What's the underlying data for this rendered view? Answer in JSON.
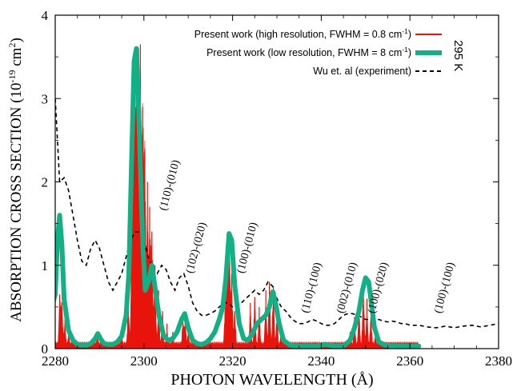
{
  "chart_data": {
    "type": "line",
    "xlabel": "PHOTON WAVELENGTH (Å)",
    "ylabel": "ABSORPTION CROSS SECTION (10",
    "ylabel_sup1": "-19",
    "ylabel_mid": " cm",
    "ylabel_sup2": "2",
    "ylabel_end": ")",
    "xlim": [
      2280,
      2380
    ],
    "ylim": [
      0,
      4
    ],
    "x_ticks": [
      2280,
      2300,
      2320,
      2340,
      2360,
      2380
    ],
    "y_ticks": [
      0,
      1,
      2,
      3,
      4
    ],
    "temperature_label": "295 K",
    "legend_position": "top-right",
    "colors": {
      "high": "#e8150c",
      "low": "#12b085",
      "exp": "#000000"
    },
    "legend": [
      {
        "text": "Present work (high resolution, FWHM = 0.8 cm",
        "sup": "-1",
        "end": ")",
        "style": "red"
      },
      {
        "text": "Present work (low resolution, FWHM = 8 cm",
        "sup": "-1",
        "end": ")",
        "style": "green"
      },
      {
        "text": "Wu et. al (experiment)",
        "sup": "",
        "end": "",
        "style": "dashed"
      }
    ],
    "annotations": [
      {
        "text": "(110)-(010)",
        "x": 2306.5,
        "y": 1.95
      },
      {
        "text": "(102)-(020)",
        "x": 2312.5,
        "y": 1.2
      },
      {
        "text": "(100)-(010)",
        "x": 2324,
        "y": 1.2
      },
      {
        "text": "(110)-(100)",
        "x": 2338.5,
        "y": 0.72
      },
      {
        "text": "(002)-(010)",
        "x": 2346.5,
        "y": 0.72
      },
      {
        "text": "(100)-(020)",
        "x": 2353.5,
        "y": 0.72
      },
      {
        "text": "(100)-(100)",
        "x": 2368.5,
        "y": 0.72
      }
    ],
    "series": [
      {
        "name": "Present work (high resolution, FWHM = 0.8 cm-1)",
        "style": "red",
        "peaks": [
          {
            "x": 2281,
            "h": 0.65
          },
          {
            "x": 2281.5,
            "h": 0.55
          },
          {
            "x": 2282.2,
            "h": 0.35
          },
          {
            "x": 2283,
            "h": 0.2
          },
          {
            "x": 2284,
            "h": 0.12
          },
          {
            "x": 2289.5,
            "h": 0.15
          },
          {
            "x": 2295,
            "h": 0.2
          },
          {
            "x": 2296.5,
            "h": 0.6
          },
          {
            "x": 2297.3,
            "h": 1.9
          },
          {
            "x": 2297.8,
            "h": 3.5
          },
          {
            "x": 2298.3,
            "h": 3.0
          },
          {
            "x": 2298.8,
            "h": 3.6
          },
          {
            "x": 2299.2,
            "h": 3.65
          },
          {
            "x": 2299.7,
            "h": 2.9
          },
          {
            "x": 2300.2,
            "h": 2.4
          },
          {
            "x": 2300.8,
            "h": 2.0
          },
          {
            "x": 2301.3,
            "h": 1.7
          },
          {
            "x": 2301.8,
            "h": 1.4
          },
          {
            "x": 2302.5,
            "h": 1.0
          },
          {
            "x": 2303.3,
            "h": 0.7
          },
          {
            "x": 2304.2,
            "h": 0.45
          },
          {
            "x": 2305.2,
            "h": 0.3
          },
          {
            "x": 2306.5,
            "h": 0.2
          },
          {
            "x": 2308.8,
            "h": 0.35
          },
          {
            "x": 2309.3,
            "h": 0.42
          },
          {
            "x": 2310,
            "h": 0.2
          },
          {
            "x": 2318.3,
            "h": 0.45
          },
          {
            "x": 2318.8,
            "h": 1.25
          },
          {
            "x": 2319.3,
            "h": 1.4
          },
          {
            "x": 2319.8,
            "h": 0.9
          },
          {
            "x": 2320.5,
            "h": 0.45
          },
          {
            "x": 2324,
            "h": 0.55
          },
          {
            "x": 2325,
            "h": 0.62
          },
          {
            "x": 2326,
            "h": 0.5
          },
          {
            "x": 2327.5,
            "h": 0.7
          },
          {
            "x": 2328.3,
            "h": 0.8
          },
          {
            "x": 2329.2,
            "h": 0.75
          },
          {
            "x": 2330,
            "h": 0.5
          },
          {
            "x": 2331,
            "h": 0.3
          },
          {
            "x": 2346.5,
            "h": 0.2
          },
          {
            "x": 2347.5,
            "h": 0.38
          },
          {
            "x": 2348.5,
            "h": 0.55
          },
          {
            "x": 2349.5,
            "h": 0.7
          },
          {
            "x": 2350.3,
            "h": 0.6
          },
          {
            "x": 2351.2,
            "h": 0.38
          },
          {
            "x": 2352.2,
            "h": 0.2
          }
        ]
      },
      {
        "name": "Present work (low resolution, FWHM = 8 cm-1)",
        "style": "green",
        "x": [
          2279.5,
          2280,
          2280.5,
          2281,
          2281.5,
          2282,
          2283,
          2284,
          2285,
          2286,
          2287,
          2288,
          2289,
          2289.6,
          2290.2,
          2291,
          2292,
          2293,
          2294,
          2295,
          2296,
          2296.6,
          2297.2,
          2297.8,
          2298.3,
          2298.8,
          2299.3,
          2299.8,
          2300.3,
          2301,
          2301.8,
          2302.6,
          2303.4,
          2304.5,
          2305.5,
          2306.5,
          2307.5,
          2308.5,
          2309.2,
          2310,
          2311,
          2312,
          2313,
          2314,
          2315,
          2316,
          2317,
          2317.8,
          2318.5,
          2319.2,
          2319.8,
          2320.5,
          2321.5,
          2322.5,
          2323.5,
          2324.5,
          2325.5,
          2326.5,
          2327.5,
          2328.3,
          2329,
          2329.7,
          2330.5,
          2331.5,
          2333,
          2335,
          2337,
          2339,
          2341,
          2343,
          2345,
          2346.5,
          2347.5,
          2348.5,
          2349.3,
          2350,
          2350.7,
          2351.4,
          2352,
          2353,
          2354.5,
          2356,
          2358,
          2360,
          2362
        ],
        "y": [
          0.55,
          0.65,
          1.3,
          1.6,
          1.25,
          0.6,
          0.22,
          0.1,
          0.05,
          0.04,
          0.04,
          0.06,
          0.12,
          0.18,
          0.12,
          0.06,
          0.05,
          0.05,
          0.08,
          0.15,
          0.4,
          0.9,
          2.2,
          3.45,
          3.6,
          2.9,
          2.0,
          1.2,
          0.7,
          0.8,
          1.0,
          0.7,
          0.4,
          0.15,
          0.1,
          0.12,
          0.2,
          0.35,
          0.42,
          0.25,
          0.1,
          0.06,
          0.05,
          0.07,
          0.12,
          0.2,
          0.35,
          0.5,
          0.85,
          1.38,
          1.3,
          0.75,
          0.3,
          0.12,
          0.1,
          0.18,
          0.3,
          0.35,
          0.4,
          0.5,
          0.68,
          0.55,
          0.3,
          0.1,
          0.04,
          0.03,
          0.03,
          0.03,
          0.05,
          0.03,
          0.03,
          0.1,
          0.25,
          0.45,
          0.7,
          0.85,
          0.8,
          0.5,
          0.25,
          0.08,
          0.04,
          0.03,
          0.03,
          0.03,
          0.03
        ]
      },
      {
        "name": "Wu et. al (experiment)",
        "style": "dashed",
        "x": [
          2280,
          2280.5,
          2281,
          2282,
          2283,
          2284,
          2285,
          2286,
          2287,
          2288,
          2289,
          2290,
          2291,
          2292,
          2293,
          2294,
          2295,
          2296,
          2297,
          2298,
          2299,
          2300,
          2301,
          2302,
          2303,
          2304,
          2305,
          2306,
          2307,
          2308,
          2309,
          2310,
          2311,
          2312,
          2313,
          2314,
          2315,
          2316,
          2317,
          2318,
          2319,
          2320,
          2321,
          2322,
          2323,
          2324,
          2325,
          2326,
          2327,
          2328,
          2329,
          2330,
          2331,
          2332,
          2333,
          2334,
          2335,
          2336,
          2337,
          2338,
          2339,
          2340,
          2341,
          2342,
          2343,
          2344,
          2345,
          2346,
          2347,
          2348,
          2349,
          2350,
          2351,
          2352,
          2353,
          2354,
          2355,
          2356,
          2357,
          2358,
          2359,
          2360,
          2362,
          2364,
          2366,
          2368,
          2370,
          2372,
          2374,
          2376,
          2378,
          2380
        ],
        "y": [
          3.0,
          2.5,
          2.0,
          2.05,
          1.9,
          1.6,
          1.3,
          1.05,
          1.0,
          1.2,
          1.3,
          1.2,
          1.0,
          0.8,
          0.7,
          0.8,
          0.9,
          1.1,
          1.3,
          1.4,
          1.4,
          1.3,
          1.1,
          0.95,
          0.9,
          1.0,
          0.95,
          0.8,
          0.7,
          0.85,
          0.9,
          0.75,
          0.55,
          0.45,
          0.4,
          0.4,
          0.42,
          0.45,
          0.5,
          0.55,
          0.55,
          0.5,
          0.5,
          0.55,
          0.6,
          0.65,
          0.7,
          0.65,
          0.7,
          0.8,
          0.75,
          0.6,
          0.5,
          0.45,
          0.38,
          0.33,
          0.3,
          0.3,
          0.32,
          0.35,
          0.33,
          0.3,
          0.28,
          0.28,
          0.3,
          0.35,
          0.4,
          0.42,
          0.42,
          0.4,
          0.38,
          0.35,
          0.35,
          0.33,
          0.35,
          0.33,
          0.32,
          0.33,
          0.32,
          0.3,
          0.3,
          0.28,
          0.28,
          0.26,
          0.25,
          0.27,
          0.25,
          0.27,
          0.28,
          0.26,
          0.28,
          0.3
        ]
      }
    ]
  }
}
